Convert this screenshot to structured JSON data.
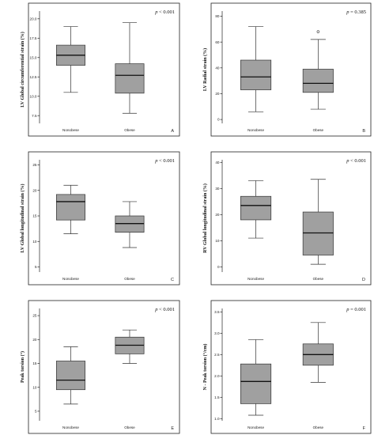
{
  "chart_data": [
    {
      "type": "box",
      "panel_letter": "A",
      "ylabel": "LV Global circumferential strain (%)",
      "p_prefix": "p",
      "p_value": " < 0.001",
      "categories": [
        "Nonobese",
        "Obese"
      ],
      "ylim": [
        6.5,
        21
      ],
      "yticks": [
        7.5,
        10.0,
        12.5,
        15.0,
        17.5,
        20.0
      ],
      "ytick_labels": [
        "7.5",
        "10.0",
        "12.5",
        "15.0",
        "17.5",
        "20.0"
      ],
      "boxes": [
        {
          "min": 10.5,
          "q1": 14.0,
          "median": 15.3,
          "q3": 16.6,
          "max": 19.0,
          "outliers": []
        },
        {
          "min": 7.8,
          "q1": 10.4,
          "median": 12.7,
          "q3": 14.2,
          "max": 19.5,
          "outliers": []
        }
      ]
    },
    {
      "type": "box",
      "panel_letter": "B",
      "ylabel": "LV Radial strain (%)",
      "p_prefix": "p",
      "p_value": " = 0.385",
      "categories": [
        "Nonobese",
        "Obese"
      ],
      "ylim": [
        -3,
        84
      ],
      "yticks": [
        0,
        20,
        40,
        60,
        80
      ],
      "ytick_labels": [
        "0",
        "20",
        "40",
        "60",
        "80"
      ],
      "boxes": [
        {
          "min": 6,
          "q1": 23,
          "median": 33,
          "q3": 46,
          "max": 72,
          "outliers": []
        },
        {
          "min": 8,
          "q1": 21,
          "median": 28,
          "q3": 39,
          "max": 62,
          "outliers": [
            68
          ]
        }
      ]
    },
    {
      "type": "box",
      "panel_letter": "C",
      "ylabel": "LV Global longitudinal strain (%)",
      "p_prefix": "p",
      "p_value": " < 0.001",
      "categories": [
        "Nonobese",
        "Obese"
      ],
      "ylim": [
        4,
        26
      ],
      "yticks": [
        5,
        10,
        15,
        20,
        25
      ],
      "ytick_labels": [
        "5",
        "10",
        "15",
        "20",
        "25"
      ],
      "boxes": [
        {
          "min": 11.5,
          "q1": 14.2,
          "median": 17.8,
          "q3": 19.2,
          "max": 21.0,
          "outliers": []
        },
        {
          "min": 8.8,
          "q1": 11.8,
          "median": 13.5,
          "q3": 15.0,
          "max": 17.8,
          "outliers": []
        }
      ]
    },
    {
      "type": "box",
      "panel_letter": "D",
      "ylabel": "RV Global longitudinal strain (%)",
      "p_prefix": "p",
      "p_value": " < 0.001",
      "categories": [
        "Nonobese",
        "Obese"
      ],
      "ylim": [
        -2,
        41
      ],
      "yticks": [
        0,
        10,
        20,
        30,
        40
      ],
      "ytick_labels": [
        "0",
        "10",
        "20",
        "30",
        "40"
      ],
      "boxes": [
        {
          "min": 11,
          "q1": 18,
          "median": 23.5,
          "q3": 27,
          "max": 33,
          "outliers": []
        },
        {
          "min": 1,
          "q1": 4.5,
          "median": 13,
          "q3": 21,
          "max": 33.5,
          "outliers": []
        }
      ]
    },
    {
      "type": "box",
      "panel_letter": "E",
      "ylabel": "Peak torsion (°)",
      "p_prefix": "p",
      "p_value": " < 0.001",
      "categories": [
        "Nonobese",
        "Obese"
      ],
      "ylim": [
        3,
        26.5
      ],
      "yticks": [
        5,
        10,
        15,
        20,
        25
      ],
      "ytick_labels": [
        "5",
        "10",
        "15",
        "20",
        "25"
      ],
      "boxes": [
        {
          "min": 6.5,
          "q1": 9.5,
          "median": 11.5,
          "q3": 15.5,
          "max": 18.5,
          "outliers": []
        },
        {
          "min": 15.0,
          "q1": 17.0,
          "median": 18.8,
          "q3": 20.5,
          "max": 22.0,
          "outliers": []
        }
      ]
    },
    {
      "type": "box",
      "panel_letter": "F",
      "ylabel": "N - Peak torsion (°/cm)",
      "p_prefix": "p",
      "p_value": " = 0.001",
      "categories": [
        "Nonobese",
        "Obese"
      ],
      "ylim": [
        0.95,
        3.58
      ],
      "yticks": [
        1.0,
        1.5,
        2.0,
        2.5,
        3.0,
        3.5
      ],
      "ytick_labels": [
        "1.0",
        "1.5",
        "2.0",
        "2.5",
        "3.0",
        "3.5"
      ],
      "boxes": [
        {
          "min": 1.08,
          "q1": 1.35,
          "median": 1.87,
          "q3": 2.28,
          "max": 2.85,
          "outliers": []
        },
        {
          "min": 1.85,
          "q1": 2.25,
          "median": 2.5,
          "q3": 2.75,
          "max": 3.25,
          "outliers": []
        }
      ]
    }
  ]
}
